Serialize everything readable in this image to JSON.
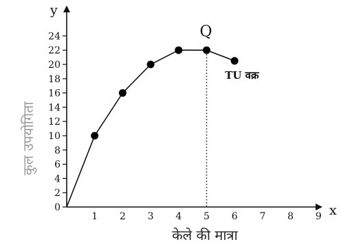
{
  "chart_data": {
    "type": "line",
    "title": "",
    "xlabel": "केले की मात्रा",
    "ylabel": "कुल उपयोगिता",
    "x_axis_letter": "x",
    "y_axis_letter": "y",
    "xlim": [
      0,
      9
    ],
    "ylim": [
      0,
      26
    ],
    "x_ticks": [
      "1",
      "2",
      "3",
      "4",
      "5",
      "6",
      "7",
      "8",
      "9"
    ],
    "y_ticks": [
      "0",
      "2",
      "4",
      "6",
      "8",
      "10",
      "12",
      "14",
      "16",
      "18",
      "20",
      "22",
      "24"
    ],
    "series": [
      {
        "name": "TU वक्र",
        "x": [
          0,
          1,
          2,
          3,
          4,
          5,
          6
        ],
        "y": [
          0,
          10,
          16,
          20,
          22,
          22,
          20.5
        ]
      }
    ],
    "annotations": [
      {
        "text": "Q",
        "x": 5,
        "y": 22,
        "dotted_drop_line": true
      }
    ],
    "grid": false,
    "colors": {
      "line": "#111111",
      "marker": "#000000",
      "ylabel": "#9a9a9a"
    }
  }
}
